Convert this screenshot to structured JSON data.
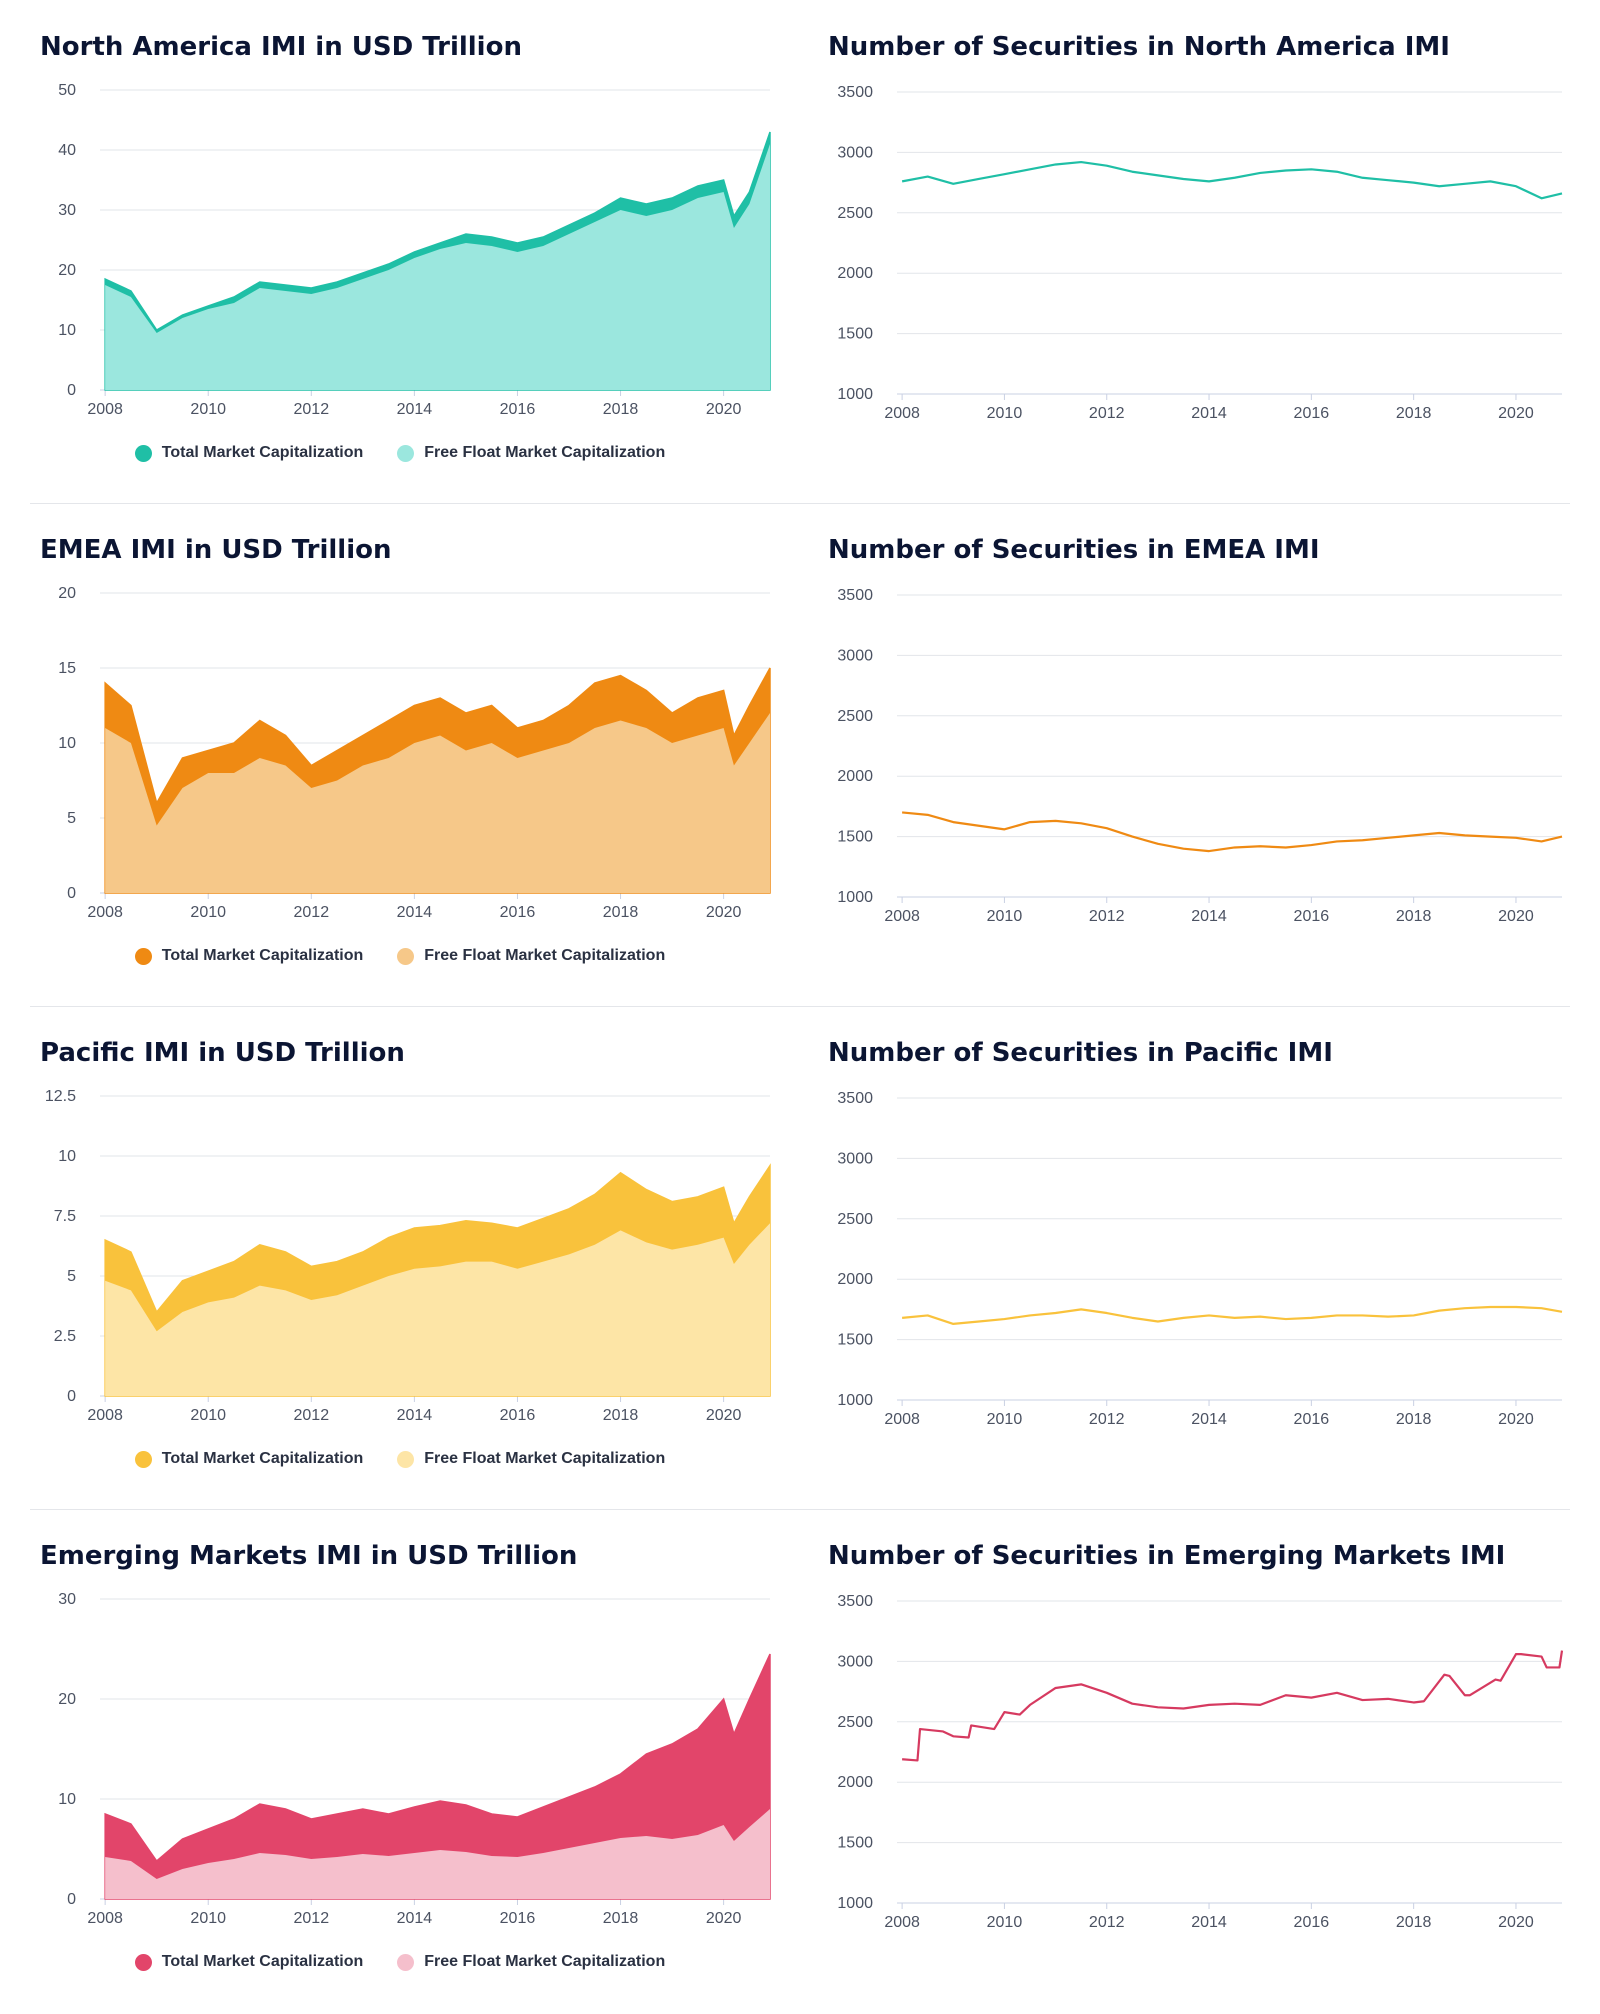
{
  "years": [
    2008,
    2009,
    2010,
    2011,
    2012,
    2013,
    2014,
    2015,
    2016,
    2017,
    2018,
    2019,
    2020,
    2020.9
  ],
  "chart_data": [
    {
      "type": "area",
      "title": "North America IMI in USD Trillion",
      "color_total": "#1fbfa6",
      "color_free": "#9be7de",
      "xlim": [
        2007.9,
        2020.9
      ],
      "ylim": [
        0,
        50
      ],
      "yticks": [
        0,
        10,
        20,
        30,
        40,
        50
      ],
      "xticks": [
        2008,
        2010,
        2012,
        2014,
        2016,
        2018,
        2020
      ],
      "x": [
        2008.0,
        2008.5,
        2009.0,
        2009.5,
        2010.0,
        2010.5,
        2011.0,
        2011.5,
        2012.0,
        2012.5,
        2013.0,
        2013.5,
        2014.0,
        2014.5,
        2015.0,
        2015.5,
        2016.0,
        2016.5,
        2017.0,
        2017.5,
        2018.0,
        2018.5,
        2019.0,
        2019.5,
        2020.0,
        2020.2,
        2020.5,
        2020.9
      ],
      "series": [
        {
          "name": "Total Market Capitalization",
          "values": [
            18.5,
            16.5,
            10,
            12.5,
            14,
            15.5,
            18,
            17.5,
            17,
            18,
            19.5,
            21,
            23,
            24.5,
            26,
            25.5,
            24.5,
            25.5,
            27.5,
            29.5,
            32,
            31,
            32,
            34,
            35,
            29,
            33,
            43
          ]
        },
        {
          "name": "Free Float Market Capitalization",
          "values": [
            17.5,
            15.5,
            9.5,
            12,
            13.5,
            14.5,
            17,
            16.5,
            16,
            17,
            18.5,
            20,
            22,
            23.5,
            24.5,
            24,
            23,
            24,
            26,
            28,
            30,
            29,
            30,
            32,
            33,
            27,
            31,
            41
          ]
        }
      ],
      "legend": [
        "Total Market Capitalization",
        "Free Float Market Capitalization"
      ]
    },
    {
      "type": "line",
      "title": "Number of Securities in North America IMI",
      "color": "#1fbfa6",
      "xlim": [
        2007.9,
        2020.9
      ],
      "ylim": [
        1000,
        3500
      ],
      "yticks": [
        1000,
        1500,
        2000,
        2500,
        3000,
        3500
      ],
      "xticks": [
        2008,
        2010,
        2012,
        2014,
        2016,
        2018,
        2020
      ],
      "x": [
        2008.0,
        2008.5,
        2009.0,
        2009.5,
        2010.0,
        2010.5,
        2011.0,
        2011.5,
        2012.0,
        2012.5,
        2013.0,
        2013.5,
        2014.0,
        2014.5,
        2015.0,
        2015.5,
        2016.0,
        2016.5,
        2017.0,
        2017.5,
        2018.0,
        2018.5,
        2019.0,
        2019.5,
        2020.0,
        2020.5,
        2020.9
      ],
      "series": [
        {
          "name": "",
          "values": [
            2760,
            2800,
            2740,
            2780,
            2820,
            2860,
            2900,
            2920,
            2890,
            2840,
            2810,
            2780,
            2760,
            2790,
            2830,
            2850,
            2860,
            2840,
            2790,
            2770,
            2750,
            2720,
            2740,
            2760,
            2720,
            2620,
            2660
          ]
        }
      ]
    },
    {
      "type": "area",
      "title": "EMEA IMI in USD Trillion",
      "color_total": "#ef8a13",
      "color_free": "#f6c889",
      "xlim": [
        2007.9,
        2020.9
      ],
      "ylim": [
        0,
        20
      ],
      "yticks": [
        0,
        5,
        10,
        15,
        20
      ],
      "xticks": [
        2008,
        2010,
        2012,
        2014,
        2016,
        2018,
        2020
      ],
      "x": [
        2008.0,
        2008.5,
        2009.0,
        2009.5,
        2010.0,
        2010.5,
        2011.0,
        2011.5,
        2012.0,
        2012.5,
        2013.0,
        2013.5,
        2014.0,
        2014.5,
        2015.0,
        2015.5,
        2016.0,
        2016.5,
        2017.0,
        2017.5,
        2018.0,
        2018.5,
        2019.0,
        2019.5,
        2020.0,
        2020.2,
        2020.5,
        2020.9
      ],
      "series": [
        {
          "name": "Total Market Capitalization",
          "values": [
            14,
            12.5,
            6,
            9,
            9.5,
            10,
            11.5,
            10.5,
            8.5,
            9.5,
            10.5,
            11.5,
            12.5,
            13,
            12,
            12.5,
            11,
            11.5,
            12.5,
            14,
            14.5,
            13.5,
            12,
            13,
            13.5,
            10.5,
            12.5,
            15
          ]
        },
        {
          "name": "Free Float Market Capitalization",
          "values": [
            11,
            10,
            4.5,
            7,
            8,
            8,
            9,
            8.5,
            7,
            7.5,
            8.5,
            9,
            10,
            10.5,
            9.5,
            10,
            9,
            9.5,
            10,
            11,
            11.5,
            11,
            10,
            10.5,
            11,
            8.5,
            10,
            12
          ]
        }
      ],
      "legend": [
        "Total Market Capitalization",
        "Free Float Market Capitalization"
      ]
    },
    {
      "type": "line",
      "title": "Number of Securities in EMEA IMI",
      "color": "#ef8a13",
      "xlim": [
        2007.9,
        2020.9
      ],
      "ylim": [
        1000,
        3500
      ],
      "yticks": [
        1000,
        1500,
        2000,
        2500,
        3000,
        3500
      ],
      "xticks": [
        2008,
        2010,
        2012,
        2014,
        2016,
        2018,
        2020
      ],
      "x": [
        2008.0,
        2008.5,
        2009.0,
        2009.5,
        2010.0,
        2010.5,
        2011.0,
        2011.5,
        2012.0,
        2012.5,
        2013.0,
        2013.5,
        2014.0,
        2014.5,
        2015.0,
        2015.5,
        2016.0,
        2016.5,
        2017.0,
        2017.5,
        2018.0,
        2018.5,
        2019.0,
        2019.5,
        2020.0,
        2020.5,
        2020.9
      ],
      "series": [
        {
          "name": "",
          "values": [
            1700,
            1680,
            1620,
            1590,
            1560,
            1620,
            1630,
            1610,
            1570,
            1500,
            1440,
            1400,
            1380,
            1410,
            1420,
            1410,
            1430,
            1460,
            1470,
            1490,
            1510,
            1530,
            1510,
            1500,
            1490,
            1460,
            1500
          ]
        }
      ]
    },
    {
      "type": "area",
      "title": "Pacific IMI in USD Trillion",
      "color_total": "#f9c23c",
      "color_free": "#fde5a6",
      "xlim": [
        2007.9,
        2020.9
      ],
      "ylim": [
        0,
        12.5
      ],
      "yticks": [
        0,
        2.5,
        5,
        7.5,
        10,
        12.5
      ],
      "xticks": [
        2008,
        2010,
        2012,
        2014,
        2016,
        2018,
        2020
      ],
      "x": [
        2008.0,
        2008.5,
        2009.0,
        2009.5,
        2010.0,
        2010.5,
        2011.0,
        2011.5,
        2012.0,
        2012.5,
        2013.0,
        2013.5,
        2014.0,
        2014.5,
        2015.0,
        2015.5,
        2016.0,
        2016.5,
        2017.0,
        2017.5,
        2018.0,
        2018.5,
        2019.0,
        2019.5,
        2020.0,
        2020.2,
        2020.5,
        2020.9
      ],
      "series": [
        {
          "name": "Total Market Capitalization",
          "values": [
            6.5,
            6,
            3.5,
            4.8,
            5.2,
            5.6,
            6.3,
            6,
            5.4,
            5.6,
            6,
            6.6,
            7,
            7.1,
            7.3,
            7.2,
            7.0,
            7.4,
            7.8,
            8.4,
            9.3,
            8.6,
            8.1,
            8.3,
            8.7,
            7.2,
            8.3,
            9.6
          ]
        },
        {
          "name": "Free Float Market Capitalization",
          "values": [
            4.8,
            4.4,
            2.7,
            3.5,
            3.9,
            4.1,
            4.6,
            4.4,
            4.0,
            4.2,
            4.6,
            5.0,
            5.3,
            5.4,
            5.6,
            5.6,
            5.3,
            5.6,
            5.9,
            6.3,
            6.9,
            6.4,
            6.1,
            6.3,
            6.6,
            5.5,
            6.3,
            7.2
          ]
        }
      ],
      "legend": [
        "Total Market Capitalization",
        "Free Float Market Capitalization"
      ]
    },
    {
      "type": "line",
      "title": "Number of Securities in Pacific IMI",
      "color": "#f9c23c",
      "xlim": [
        2007.9,
        2020.9
      ],
      "ylim": [
        1000,
        3500
      ],
      "yticks": [
        1000,
        1500,
        2000,
        2500,
        3000,
        3500
      ],
      "xticks": [
        2008,
        2010,
        2012,
        2014,
        2016,
        2018,
        2020
      ],
      "x": [
        2008.0,
        2008.5,
        2009.0,
        2009.5,
        2010.0,
        2010.5,
        2011.0,
        2011.5,
        2012.0,
        2012.5,
        2013.0,
        2013.5,
        2014.0,
        2014.5,
        2015.0,
        2015.5,
        2016.0,
        2016.5,
        2017.0,
        2017.5,
        2018.0,
        2018.5,
        2019.0,
        2019.5,
        2020.0,
        2020.5,
        2020.9
      ],
      "series": [
        {
          "name": "",
          "values": [
            1680,
            1700,
            1630,
            1650,
            1670,
            1700,
            1720,
            1750,
            1720,
            1680,
            1650,
            1680,
            1700,
            1680,
            1690,
            1670,
            1680,
            1700,
            1700,
            1690,
            1700,
            1740,
            1760,
            1770,
            1770,
            1760,
            1730
          ]
        }
      ]
    },
    {
      "type": "area",
      "title": "Emerging Markets IMI in USD Trillion",
      "color_total": "#e2456a",
      "color_free": "#f5bfcc",
      "xlim": [
        2007.9,
        2020.9
      ],
      "ylim": [
        0,
        30
      ],
      "yticks": [
        0,
        10,
        20,
        30
      ],
      "xticks": [
        2008,
        2010,
        2012,
        2014,
        2016,
        2018,
        2020
      ],
      "x": [
        2008.0,
        2008.5,
        2009.0,
        2009.5,
        2010.0,
        2010.5,
        2011.0,
        2011.5,
        2012.0,
        2012.5,
        2013.0,
        2013.5,
        2014.0,
        2014.5,
        2015.0,
        2015.5,
        2016.0,
        2016.5,
        2017.0,
        2017.5,
        2018.0,
        2018.5,
        2019.0,
        2019.5,
        2020.0,
        2020.2,
        2020.5,
        2020.9
      ],
      "series": [
        {
          "name": "Total Market Capitalization",
          "values": [
            8.5,
            7.5,
            3.8,
            6,
            7,
            8,
            9.5,
            9,
            8,
            8.5,
            9,
            8.5,
            9.2,
            9.8,
            9.4,
            8.5,
            8.2,
            9.2,
            10.2,
            11.2,
            12.5,
            14.5,
            15.5,
            17,
            20,
            16.5,
            20,
            24.5
          ]
        },
        {
          "name": "Free Float Market Capitalization",
          "values": [
            4.2,
            3.8,
            2.0,
            3.0,
            3.6,
            4.0,
            4.6,
            4.4,
            4.0,
            4.2,
            4.5,
            4.3,
            4.6,
            4.9,
            4.7,
            4.3,
            4.2,
            4.6,
            5.1,
            5.6,
            6.1,
            6.3,
            6.0,
            6.4,
            7.4,
            5.8,
            7.2,
            9.0
          ]
        }
      ],
      "legend": [
        "Total Market Capitalization",
        "Free Float Market Capitalization"
      ]
    },
    {
      "type": "line",
      "title": "Number of Securities in Emerging Markets IMI",
      "color": "#d63a60",
      "xlim": [
        2007.9,
        2020.9
      ],
      "ylim": [
        1000,
        3500
      ],
      "yticks": [
        1000,
        1500,
        2000,
        2500,
        3000,
        3500
      ],
      "xticks": [
        2008,
        2010,
        2012,
        2014,
        2016,
        2018,
        2020
      ],
      "x": [
        2008.0,
        2008.3,
        2008.35,
        2008.8,
        2009.0,
        2009.3,
        2009.35,
        2009.8,
        2010.0,
        2010.3,
        2010.5,
        2011.0,
        2011.5,
        2012.0,
        2012.5,
        2013.0,
        2013.5,
        2014.0,
        2014.5,
        2015.0,
        2015.5,
        2016.0,
        2016.5,
        2017.0,
        2017.5,
        2018.0,
        2018.2,
        2018.6,
        2018.7,
        2019.0,
        2019.1,
        2019.6,
        2019.7,
        2020.0,
        2020.1,
        2020.5,
        2020.6,
        2020.85,
        2020.9
      ],
      "series": [
        {
          "name": "",
          "values": [
            2190,
            2180,
            2440,
            2420,
            2380,
            2370,
            2470,
            2440,
            2580,
            2560,
            2640,
            2780,
            2810,
            2740,
            2650,
            2620,
            2610,
            2640,
            2650,
            2640,
            2720,
            2700,
            2740,
            2680,
            2690,
            2660,
            2670,
            2890,
            2880,
            2720,
            2720,
            2850,
            2840,
            3060,
            3060,
            3040,
            2950,
            2950,
            3090
          ]
        }
      ]
    }
  ]
}
